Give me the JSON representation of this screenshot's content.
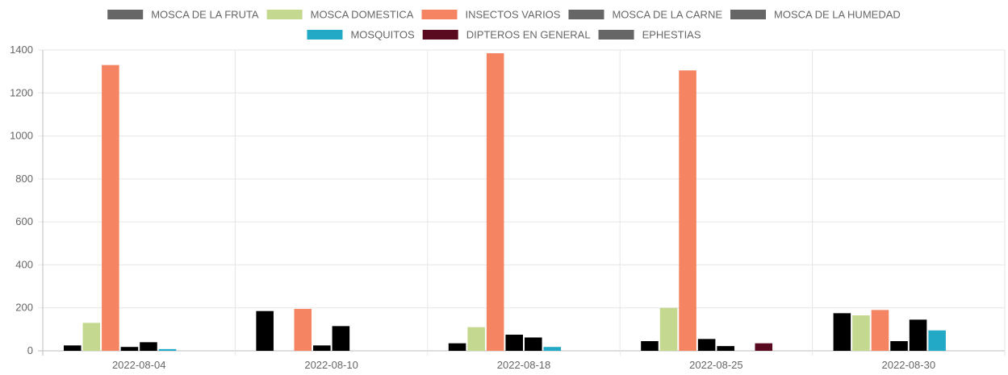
{
  "chart_data": {
    "type": "bar",
    "categories": [
      "2022-08-04",
      "2022-08-10",
      "2022-08-18",
      "2022-08-25",
      "2022-08-30"
    ],
    "ylim": [
      0,
      1400
    ],
    "yticks": [
      0,
      200,
      400,
      600,
      800,
      1000,
      1200,
      1400
    ],
    "grid": true,
    "legend_position": "top",
    "series": [
      {
        "name": "MOSCA DE LA FRUTA",
        "bar_color": "#000000",
        "legend_color": "#666666",
        "values": [
          25,
          185,
          35,
          45,
          175
        ]
      },
      {
        "name": "MOSCA DOMESTICA",
        "bar_color": "#c5d88f",
        "legend_color": "#c5d88f",
        "values": [
          130,
          0,
          110,
          200,
          165
        ]
      },
      {
        "name": "INSECTOS VARIOS",
        "bar_color": "#f48462",
        "legend_color": "#f48462",
        "values": [
          1330,
          195,
          1385,
          1305,
          190
        ]
      },
      {
        "name": "MOSCA DE LA CARNE",
        "bar_color": "#000000",
        "legend_color": "#666666",
        "values": [
          18,
          25,
          75,
          55,
          45
        ]
      },
      {
        "name": "MOSCA DE LA HUMEDAD",
        "bar_color": "#000000",
        "legend_color": "#666666",
        "values": [
          40,
          115,
          62,
          22,
          145
        ]
      },
      {
        "name": "MOSQUITOS",
        "bar_color": "#21a9c6",
        "legend_color": "#21a9c6",
        "values": [
          8,
          0,
          18,
          0,
          95
        ]
      },
      {
        "name": "DIPTEROS EN GENERAL",
        "bar_color": "#5a0a1e",
        "legend_color": "#5a0a1e",
        "values": [
          0,
          0,
          0,
          35,
          0
        ]
      },
      {
        "name": "EPHESTIAS",
        "bar_color": "#000000",
        "legend_color": "#666666",
        "values": [
          0,
          0,
          0,
          0,
          0
        ]
      }
    ]
  }
}
